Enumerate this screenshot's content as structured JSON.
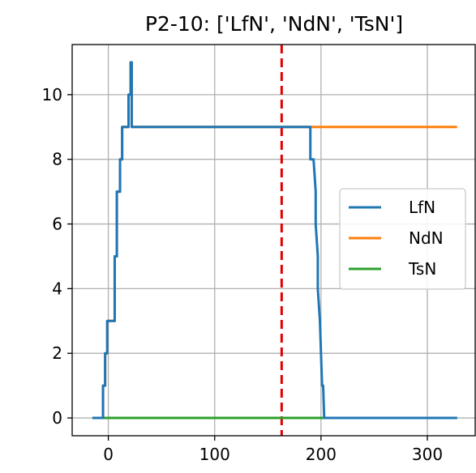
{
  "chart_data": {
    "type": "line",
    "title": "P2-10: ['LfN', 'NdN', 'TsN']",
    "xlabel": "",
    "ylabel": "",
    "xlim": [
      -34,
      345
    ],
    "ylim": [
      -0.55,
      11.55
    ],
    "xticks": [
      0,
      100,
      200,
      300
    ],
    "yticks": [
      0,
      2,
      4,
      6,
      8,
      10
    ],
    "grid": true,
    "legend_position": "center-right",
    "vline": {
      "x": 163,
      "color": "#e00000",
      "style": "dashed"
    },
    "series": [
      {
        "name": "LfN",
        "color": "#1f77b4",
        "points": [
          [
            -15,
            0
          ],
          [
            -5,
            0
          ],
          [
            -5,
            1
          ],
          [
            -3,
            1
          ],
          [
            -3,
            2
          ],
          [
            -1,
            2
          ],
          [
            -1,
            3
          ],
          [
            6,
            3
          ],
          [
            6,
            5
          ],
          [
            8,
            5
          ],
          [
            8,
            7
          ],
          [
            11,
            7
          ],
          [
            11,
            8
          ],
          [
            13,
            8
          ],
          [
            13,
            9
          ],
          [
            19,
            9
          ],
          [
            19,
            10
          ],
          [
            21,
            10
          ],
          [
            21,
            11
          ],
          [
            22,
            11
          ],
          [
            22,
            9
          ],
          [
            190,
            9
          ],
          [
            190,
            8
          ],
          [
            193,
            8
          ],
          [
            195,
            7
          ],
          [
            195,
            6
          ],
          [
            197,
            5
          ],
          [
            197,
            4
          ],
          [
            199,
            3
          ],
          [
            200,
            2
          ],
          [
            201,
            1
          ],
          [
            202,
            1
          ],
          [
            203,
            0
          ],
          [
            328,
            0
          ]
        ]
      },
      {
        "name": "NdN",
        "color": "#ff7f0e",
        "points": [
          [
            -15,
            0
          ],
          [
            -5,
            0
          ],
          [
            -5,
            1
          ],
          [
            -3,
            1
          ],
          [
            -3,
            2
          ],
          [
            -1,
            2
          ],
          [
            -1,
            3
          ],
          [
            6,
            3
          ],
          [
            6,
            5
          ],
          [
            8,
            5
          ],
          [
            8,
            7
          ],
          [
            11,
            7
          ],
          [
            11,
            8
          ],
          [
            13,
            8
          ],
          [
            13,
            9
          ],
          [
            19,
            9
          ],
          [
            19,
            10
          ],
          [
            21,
            10
          ],
          [
            21,
            11
          ],
          [
            22,
            11
          ],
          [
            22,
            9
          ],
          [
            328,
            9
          ]
        ]
      },
      {
        "name": "TsN",
        "color": "#2ca02c",
        "points": [
          [
            -15,
            0
          ],
          [
            328,
            0
          ]
        ]
      }
    ]
  }
}
